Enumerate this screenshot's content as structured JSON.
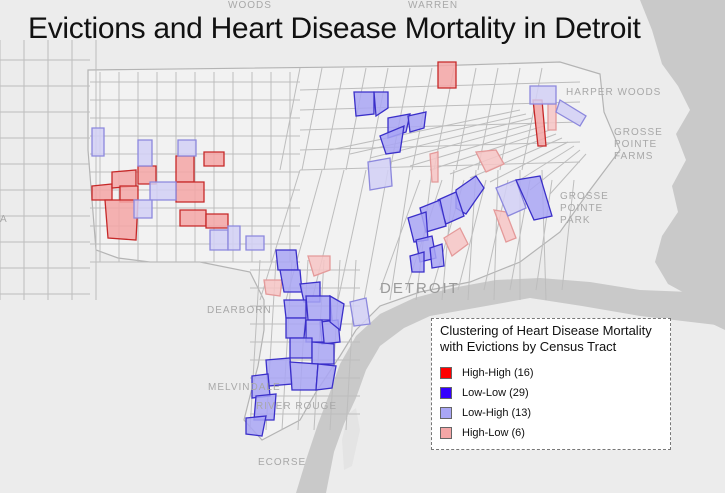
{
  "title": "Evictions and Heart Disease Mortality in Detroit",
  "places": {
    "warren": "WARREN",
    "woods": "WOODS",
    "harper_woods": "HARPER WOODS",
    "grosse_pointe_farms": "GROSSE POINTE FARMS",
    "grosse_pointe_park": "GROSSE POINTE PARK",
    "detroit": "DETROIT",
    "dearborn": "DEARBORN",
    "melvindale": "MELVINDALE",
    "river_rouge": "RIVER ROUGE",
    "ecorse": "ECORSE",
    "west_edge": "A"
  },
  "legend": {
    "title": "Clustering of Heart Disease Mortality with Evictions by Census Tract",
    "items": [
      {
        "label": "High-High (16)",
        "color": "#ff0000"
      },
      {
        "label": "Low-Low (29)",
        "color": "#3300ff"
      },
      {
        "label": "Low-High (13)",
        "color": "#a9a6f5"
      },
      {
        "label": "High-Low (6)",
        "color": "#f4a6a6"
      }
    ]
  },
  "colors": {
    "water": "#c9c9c9",
    "land": "#ececec",
    "tract_outline": "#bdbdbd",
    "high_high": "#f4a6a6",
    "high_high_border": "#c62828",
    "low_low": "#a9a6f5",
    "low_low_border": "#3a2fc9",
    "low_high": "#d2d0f6",
    "low_high_border": "#8c88dd",
    "high_low": "#f7c6c6",
    "high_low_border": "#e49a9a"
  }
}
